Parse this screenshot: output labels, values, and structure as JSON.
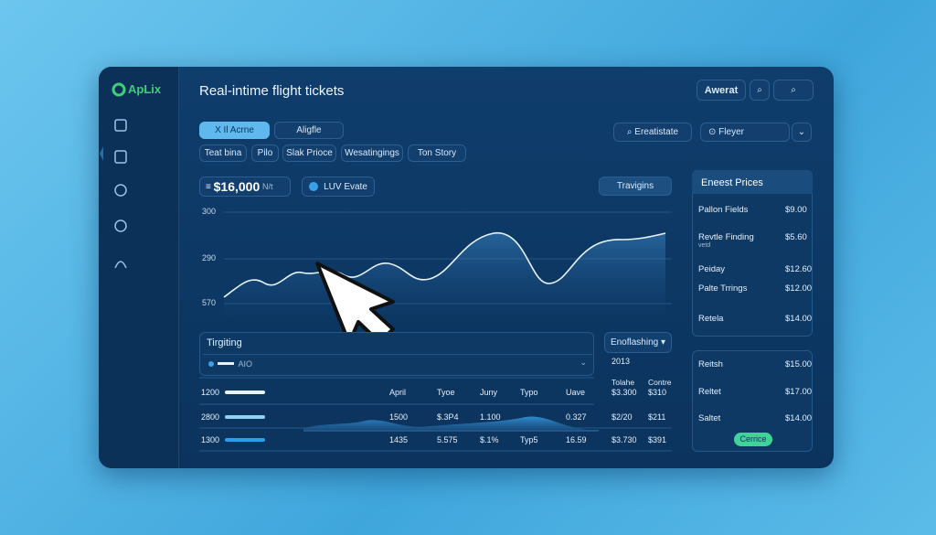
{
  "logo": "ApLix",
  "title": "Real-intime flight tickets",
  "header": {
    "account": "Awerat"
  },
  "tabs": [
    "X Il Acrne",
    "Aligfle"
  ],
  "chips": [
    "Teat bina",
    "Pilo",
    "Slak Prioce",
    "Wesatingings",
    "Ton Story"
  ],
  "search": "Ereatistate",
  "select": "Fleyer",
  "price": {
    "amount": "$16,000",
    "unit": "N/t"
  },
  "badge": "LUV Evate",
  "action": "Travigins",
  "chart": {
    "y_labels": [
      "300",
      "290",
      "570"
    ]
  },
  "prices_panel": {
    "title": "Eneest Prices",
    "rows": [
      {
        "name": "Pallon Fields",
        "price": "$9.00"
      },
      {
        "name": "Revtle Finding",
        "sub": "vetd",
        "price": "$5.60"
      },
      {
        "name": "Peiday",
        "price": "$12.60"
      },
      {
        "name": "Palte Trrings",
        "price": "$12.00"
      },
      {
        "name": "Retela",
        "price": "$14.00"
      }
    ]
  },
  "second_panel": {
    "rows": [
      {
        "name": "Reitsh",
        "price": "$15.00"
      },
      {
        "name": "Reltet",
        "price": "$17.00"
      },
      {
        "name": "Saltet",
        "price": "$14.00"
      }
    ],
    "button": "Cerrice"
  },
  "filter": {
    "title": "Tirgiting",
    "dropdown": "AIO"
  },
  "period": {
    "title": "Enoflashing",
    "value": "2013"
  },
  "table": {
    "headers": [
      "Tolahe",
      "Contre"
    ],
    "rows": [
      {
        "label": "1200",
        "cells": [
          "April",
          "Tyoe",
          "Juny",
          "Typo",
          "Uave",
          "$3.300",
          "$310"
        ]
      },
      {
        "label": "2800",
        "cells": [
          "1500",
          "$.3P4",
          "1.100",
          null,
          "0.327",
          "$2/20",
          "$211"
        ]
      },
      {
        "label": "1300",
        "cells": [
          "1435",
          "5.575",
          "$.1%",
          "Typ5",
          "16.59",
          "$3.730",
          "$391"
        ]
      }
    ]
  }
}
